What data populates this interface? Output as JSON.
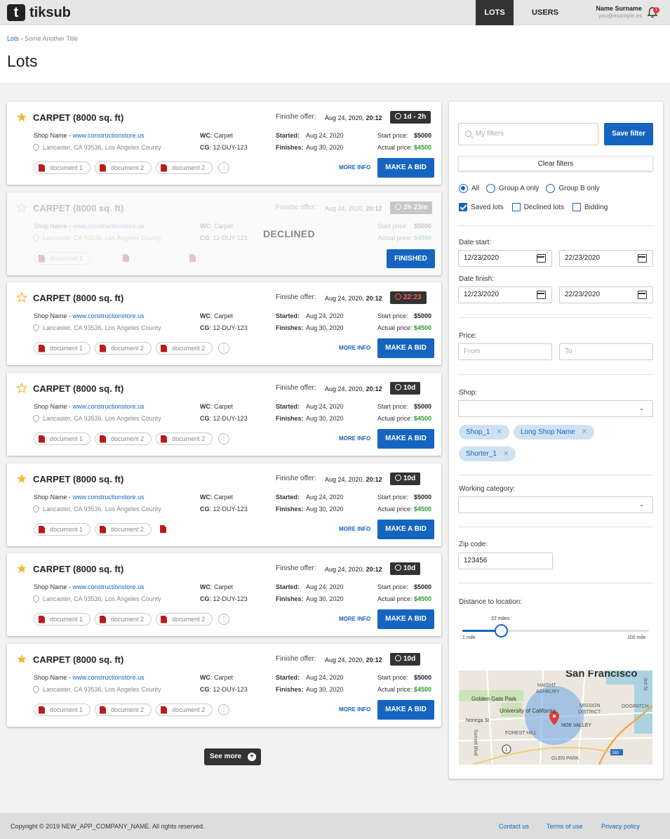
{
  "header": {
    "logo_letter": "t",
    "logo_text": "tiksub",
    "nav": [
      "LOTS",
      "USERS"
    ],
    "user_name": "Name Surname",
    "user_email": "you@example.es",
    "notification_count": "1"
  },
  "breadcrumb": {
    "root": "Lots",
    "separator": "›",
    "current": "Some Another Title"
  },
  "page_title": "Lots",
  "lots": [
    {
      "title": "CARPET (8000 sq. ft)",
      "starred": true,
      "finish_label": "Finishe offer:",
      "finish_date": "Aug 24, 2020,",
      "finish_time": "20:12",
      "timer": "1d - 2h",
      "timer_red": false,
      "shop_name": "Shop Name - ",
      "shop_url": "www.constructionstore.us",
      "location": "Lancaster, CA 93536, Los Angeles County",
      "wc_label": "WC",
      "wc_value": ": Carpet",
      "cg_label": "CG",
      "cg_value": ": 12-DUY-123",
      "started_label": "Started:",
      "started_value": "Aug 24, 2020",
      "finishes_label": "Finishes:",
      "finishes_value": "Aug 30, 2020",
      "start_price_label": "Start price:",
      "start_price": "$5000",
      "actual_price_label": "Actual price:",
      "actual_price": "$4500",
      "documents": [
        "document 1",
        "document 2",
        "document 2"
      ],
      "more_info": "MORE INFO",
      "bid": "MAKE A BID"
    },
    {
      "title": "CARPET (8000 sq. ft)",
      "starred": false,
      "finish_label": "Finishe offer:",
      "finish_date": "Aug 24, 2020,",
      "finish_time": "20:12",
      "timer": "2h 23m",
      "shop_name": "Shop Name - ",
      "shop_url": "www.constructionstore.us",
      "location": "Lancaster, CA 93536, Los Angeles County",
      "wc_label": "WC",
      "wc_value": ": Carpet",
      "cg_label": "CG",
      "cg_value": ": 12-DUY-123",
      "start_price_label": "Start price:",
      "start_price": "$5000",
      "actual_price_label": "Actual price:",
      "actual_price": "$4500",
      "documents": [
        "document 1"
      ],
      "status": "DECLINED",
      "finished": "FINISHED"
    },
    {
      "title": "CARPET (8000 sq. ft)",
      "starred": false,
      "finish_label": "Finishe offer:",
      "finish_date": "Aug 24, 2020,",
      "finish_time": "20:12",
      "timer": "22:23",
      "timer_red": true,
      "shop_name": "Shop Name - ",
      "shop_url": "www.constructionstore.us",
      "location": "Lancaster, CA 93536, Los Angeles County",
      "wc_label": "WC",
      "wc_value": ": Carpet",
      "cg_label": "CG",
      "cg_value": ": 12-DUY-123",
      "started_label": "Started:",
      "started_value": "Aug 24, 2020",
      "finishes_label": "Finishes:",
      "finishes_value": "Aug 30, 2020",
      "start_price_label": "Start price:",
      "start_price": "$5000",
      "actual_price_label": "Actual price:",
      "actual_price": "$4500",
      "documents": [
        "document 1",
        "document 2",
        "document 2"
      ],
      "more_info": "MORE INFO",
      "bid": "MAKE A BID"
    },
    {
      "title": "CARPET (8000 sq. ft)",
      "starred": false,
      "finish_label": "Finishe offer:",
      "finish_date": "Aug 24, 2020,",
      "finish_time": "20:12",
      "timer": "10d",
      "timer_red": false,
      "shop_name": "Shop Name - ",
      "shop_url": "www.constructionstore.us",
      "location": "Lancaster, CA 93536, Los Angeles County",
      "wc_label": "WC",
      "wc_value": ": Carpet",
      "cg_label": "CG",
      "cg_value": ": 12-DUY-123",
      "started_label": "Started:",
      "started_value": "Aug 24, 2020",
      "finishes_label": "Finishes:",
      "finishes_value": "Aug 30, 2020",
      "start_price_label": "Start price:",
      "start_price": "$5000",
      "actual_price_label": "Actual price:",
      "actual_price": "$4500",
      "documents": [
        "document 1",
        "document 2",
        "document 2"
      ],
      "more_info": "MORE INFO",
      "bid": "MAKE A BID"
    },
    {
      "title": "CARPET (8000 sq. ft)",
      "starred": true,
      "finish_label": "Finishe offer:",
      "finish_date": "Aug 24, 2020,",
      "finish_time": "20:12",
      "timer": "10d",
      "timer_red": false,
      "shop_name": "Shop Name - ",
      "shop_url": "www.constructionstore.us",
      "location": "Lancaster, CA 93536, Los Angeles County",
      "wc_label": "WC",
      "wc_value": ": Carpet",
      "cg_label": "CG",
      "cg_value": ": 12-DUY-123",
      "started_label": "Started:",
      "started_value": "Aug 24, 2020",
      "finishes_label": "Finishes:",
      "finishes_value": "Aug 30, 2020",
      "start_price_label": "Start price:",
      "start_price": "$5000",
      "actual_price_label": "Actual price:",
      "actual_price": "$4500",
      "documents": [
        "document 1",
        "document 2"
      ],
      "more_info": "MORE INFO",
      "bid": "MAKE A BID"
    },
    {
      "title": "CARPET (8000 sq. ft)",
      "starred": true,
      "finish_label": "Finishe offer:",
      "finish_date": "Aug 24, 2020,",
      "finish_time": "20:12",
      "timer": "10d",
      "timer_red": false,
      "shop_name": "Shop Name - ",
      "shop_url": "www.constructionstore.us",
      "location": "Lancaster, CA 93536, Los Angeles County",
      "wc_label": "WC",
      "wc_value": ": Carpet",
      "cg_label": "CG",
      "cg_value": ": 12-DUY-123",
      "started_label": "Started:",
      "started_value": "Aug 24, 2020",
      "finishes_label": "Finishes:",
      "finishes_value": "Aug 30, 2020",
      "start_price_label": "Start price:",
      "start_price": "$5000",
      "actual_price_label": "Actual price:",
      "actual_price": "$4500",
      "documents": [
        "document 1",
        "document 2",
        "document 2"
      ],
      "more_info": "MORE INFO",
      "bid": "MAKE A BID"
    },
    {
      "title": "CARPET (8000 sq. ft)",
      "starred": true,
      "finish_label": "Finishe offer:",
      "finish_date": "Aug 24, 2020,",
      "finish_time": "20:12",
      "timer": "10d",
      "timer_red": false,
      "shop_name": "Shop Name - ",
      "shop_url": "www.constructionstore.us",
      "location": "Lancaster, CA 93536, Los Angeles County",
      "wc_label": "WC",
      "wc_value": ": Carpet",
      "cg_label": "CG",
      "cg_value": ": 12-DUY-123",
      "started_label": "Started:",
      "started_value": "Aug 24, 2020",
      "finishes_label": "Finishes:",
      "finishes_value": "Aug 30, 2020",
      "start_price_label": "Start price:",
      "start_price": "$5000",
      "actual_price_label": "Actual price:",
      "actual_price": "$4500",
      "documents": [
        "document 1",
        "document 2",
        "document 2"
      ],
      "more_info": "MORE INFO",
      "bid": "MAKE A BID"
    }
  ],
  "see_more": "See more",
  "filters": {
    "search_placeholder": "My filters",
    "save_filter": "Save filter",
    "clear_filters": "Clear filters",
    "radios": [
      {
        "label": "All",
        "selected": true
      },
      {
        "label": "Group A only",
        "selected": false
      },
      {
        "label": "Group B only",
        "selected": false
      }
    ],
    "checks": [
      {
        "label": "Saved lots",
        "checked": true
      },
      {
        "label": "Declined lots",
        "checked": false
      },
      {
        "label": "Bidding",
        "checked": false
      }
    ],
    "date_start_label": "Date start:",
    "date_start_from": "12/23/2020",
    "date_start_to": "22/23/2020",
    "date_finish_label": "Date finish:",
    "date_finish_from": "12/23/2020",
    "date_finish_to": "22/23/2020",
    "price_label": "Price:",
    "price_from_placeholder": "From",
    "price_to_placeholder": "To",
    "shop_label": "Shop:",
    "shop_tags": [
      "Shop_1",
      "Long Shop Name",
      "Shorter_1"
    ],
    "working_category_label": "Working category:",
    "zip_label": "Zip code:",
    "zip_value": "123456",
    "distance_label": "Distance to location:",
    "distance_value": "22 miles",
    "distance_min": "1 mile",
    "distance_max": "100 mile",
    "distance_fraction": 0.21,
    "map_labels": [
      "San Francisco",
      "Golden Gate Park",
      "HAIGHT",
      "ASHBURY",
      "University of California",
      "MISSION",
      "DISTRICT",
      "Noriega St",
      "FOREST HILL",
      "NOE VALLEY",
      "GLEN PARK",
      "DOGPATCH",
      "Sunset Blvd",
      "3rd St",
      "280",
      "1"
    ]
  },
  "footer": {
    "copyright": "Copyright © 2019 NEW_APP_COMPANY_NAME. All rights reserved.",
    "links": [
      "Contact us",
      "Terms of use",
      "Privacy policy"
    ]
  },
  "colors": {
    "primary": "#1565c0",
    "star": "#f2b93b",
    "price_green": "#2e9a2e",
    "timer_red": "#ff5a5a",
    "dark": "#333333"
  }
}
